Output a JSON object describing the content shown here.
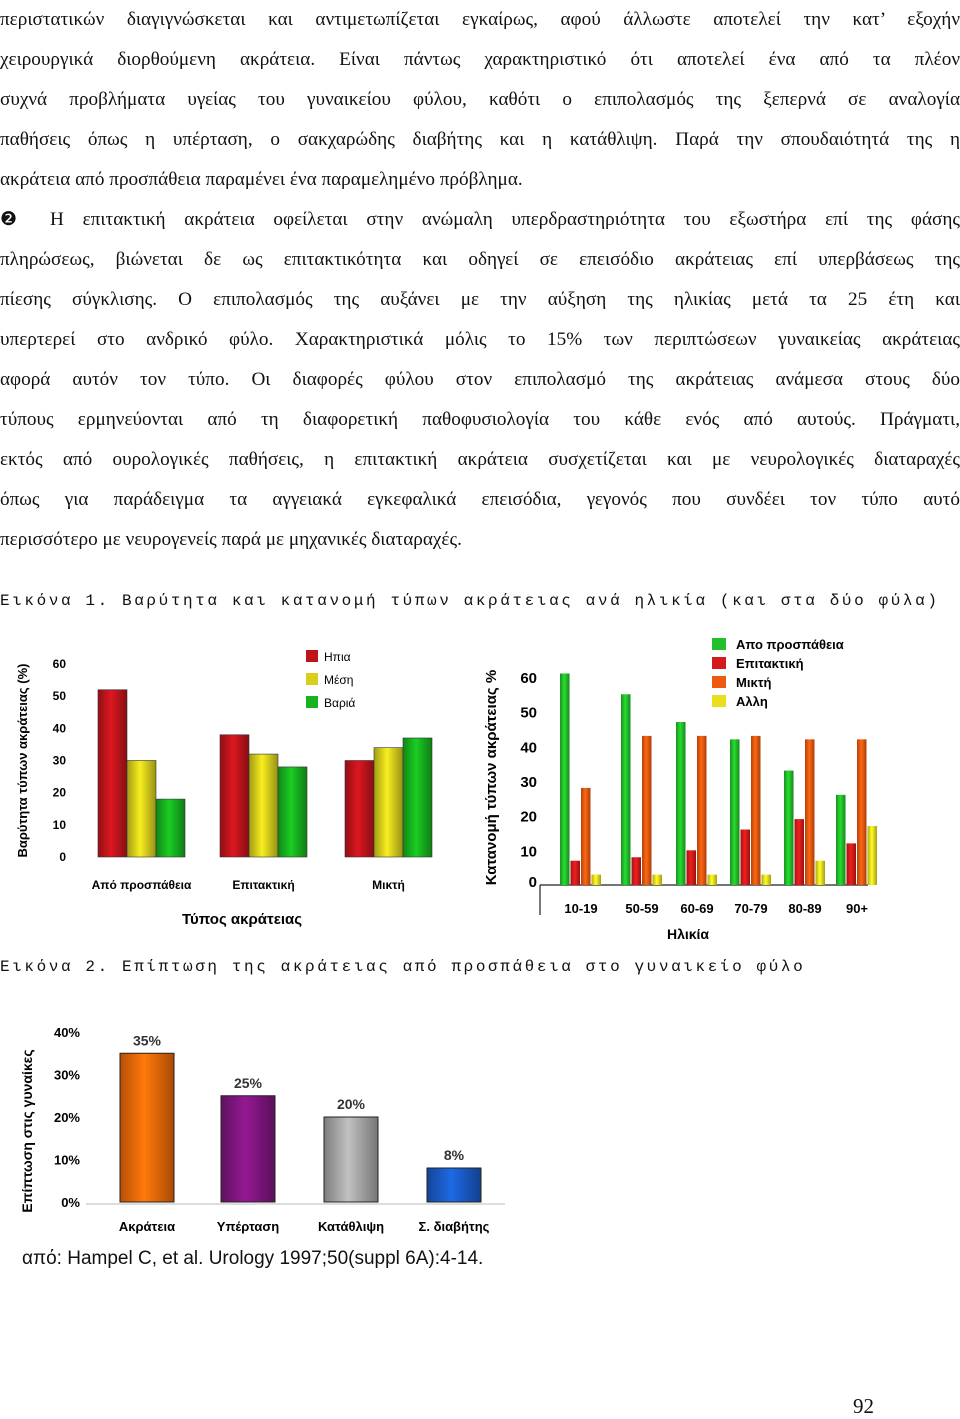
{
  "text": {
    "lines": [
      "περιστατικών διαγιγνώσκεται και αντιμετωπίζεται εγκαίρως, αφού άλλωστε αποτελεί την κατ’ εξοχήν",
      "χειρουργικά διορθούμενη ακράτεια. Είναι πάντως χαρακτηριστικό ότι αποτελεί ένα από τα πλέον",
      "συχνά προβλήματα υγείας του γυναικείου φύλου, καθότι ο επιπολασμός της ξεπερνά σε αναλογία",
      "παθήσεις όπως  η υπέρταση, ο σακχαρώδης διαβήτης και η κατάθλιψη. Παρά την σπουδαιότητά της η",
      "ακράτεια από προσπάθεια παραμένει ένα παραμελημένο πρόβλημα.",
      "❷ Η επιτακτική ακράτεια οφείλεται στην ανώμαλη υπερδραστηριότητα του εξωστήρα επί της φάσης",
      "πληρώσεως, βιώνεται δε ως επιτακτικότητα και οδηγεί σε επεισόδιο ακράτειας επί υπερβάσεως της",
      "πίεσης σύγκλισης. Ο επιπολασμός της αυξάνει με την αύξηση της ηλικίας μετά τα 25 έτη και",
      "υπερτερεί στο ανδρικό φύλο. Χαρακτηριστικά μόλις το 15% των περιπτώσεων γυναικείας ακράτειας",
      "αφορά αυτόν τον τύπο. Οι διαφορές φύλου στον επιπολασμό της ακράτειας ανάμεσα στους δύο",
      "τύπους ερμηνεύονται από τη διαφορετική παθοφυσιολογία του κάθε ενός από αυτούς. Πράγματι,",
      "εκτός από ουρολογικές παθήσεις, η επιτακτική ακράτεια συσχετίζεται και με νευρολογικές διαταραχές",
      "όπως για παράδειγμα τα αγγειακά εγκεφαλικά επεισόδια, γεγονός που συνδέει τον τύπο αυτό",
      "περισσότερο με νευρογενείς παρά με μηχανικές διαταραχές."
    ]
  },
  "figure1": {
    "caption": "Εικόνα 1. Βαρύτητα και κατανομή τύπων ακράτειας ανά ηλικία (και στα δύο φύλα)"
  },
  "figure2": {
    "caption": "Εικόνα 2. Επίπτωση της ακράτειας από προσπάθεια στο γυναικείο φύλο"
  },
  "source": "από: Hampel C, et al. Urology 1997;50(suppl 6A):4-14.",
  "page_number": "92",
  "chart_data": [
    {
      "type": "bar",
      "categories": [
        "Από προσπάθεια",
        "Επιτακτική",
        "Μικτή"
      ],
      "series": [
        {
          "name": "Ηπια",
          "values": [
            52,
            38,
            30
          ],
          "color": "#c0141c"
        },
        {
          "name": "Μέση",
          "values": [
            30,
            32,
            34
          ],
          "color": "#d8cf1c"
        },
        {
          "name": "Βαριά",
          "values": [
            18,
            28,
            37
          ],
          "color": "#17b21e"
        }
      ],
      "xlabel": "Τύπος ακράτειας",
      "ylabel": "Βαρύτητα τύπων ακράτειας (%)",
      "yticks": [
        "0",
        "10",
        "20",
        "30",
        "40",
        "50",
        "60"
      ],
      "ylim": [
        0,
        60
      ],
      "legend": "top-center"
    },
    {
      "type": "bar",
      "categories": [
        "10-19",
        "50-59",
        "60-69",
        "70-79",
        "80-89",
        "90+"
      ],
      "series": [
        {
          "name": "Απο προσπάθεια",
          "values": [
            61,
            55,
            47,
            42,
            33,
            26
          ],
          "color": "#22c02a"
        },
        {
          "name": "Επιτακτική",
          "values": [
            7,
            8,
            10,
            16,
            19,
            12
          ],
          "color": "#d41a1a"
        },
        {
          "name": "Μικτή",
          "values": [
            28,
            43,
            43,
            43,
            42,
            42
          ],
          "color": "#ee5a10"
        },
        {
          "name": "Αλλη",
          "values": [
            3,
            3,
            3,
            3,
            7,
            17
          ],
          "color": "#eadf1e"
        }
      ],
      "xlabel": "Ηλικία",
      "ylabel": "Κατανομή τύπων ακράτειας %",
      "yticks": [
        "0",
        "10",
        "20",
        "30",
        "40",
        "50",
        "60"
      ],
      "ylim": [
        0,
        62
      ],
      "legend": "top-right"
    },
    {
      "type": "bar",
      "categories": [
        "Ακράτεια",
        "Υπέρταση",
        "Κατάθλιψη",
        "Σ. διαβήτης"
      ],
      "values": [
        35,
        25,
        20,
        8
      ],
      "data_labels": [
        "35%",
        "25%",
        "20%",
        "8%"
      ],
      "colors": [
        "#f26a08",
        "#801680",
        "#a8a8a8",
        "#1a5cc8"
      ],
      "ylabel": "Επίπτωση στις γυναίκες",
      "yticks": [
        "0%",
        "10%",
        "20%",
        "30%",
        "40%"
      ],
      "ylim": [
        0,
        40
      ]
    }
  ]
}
